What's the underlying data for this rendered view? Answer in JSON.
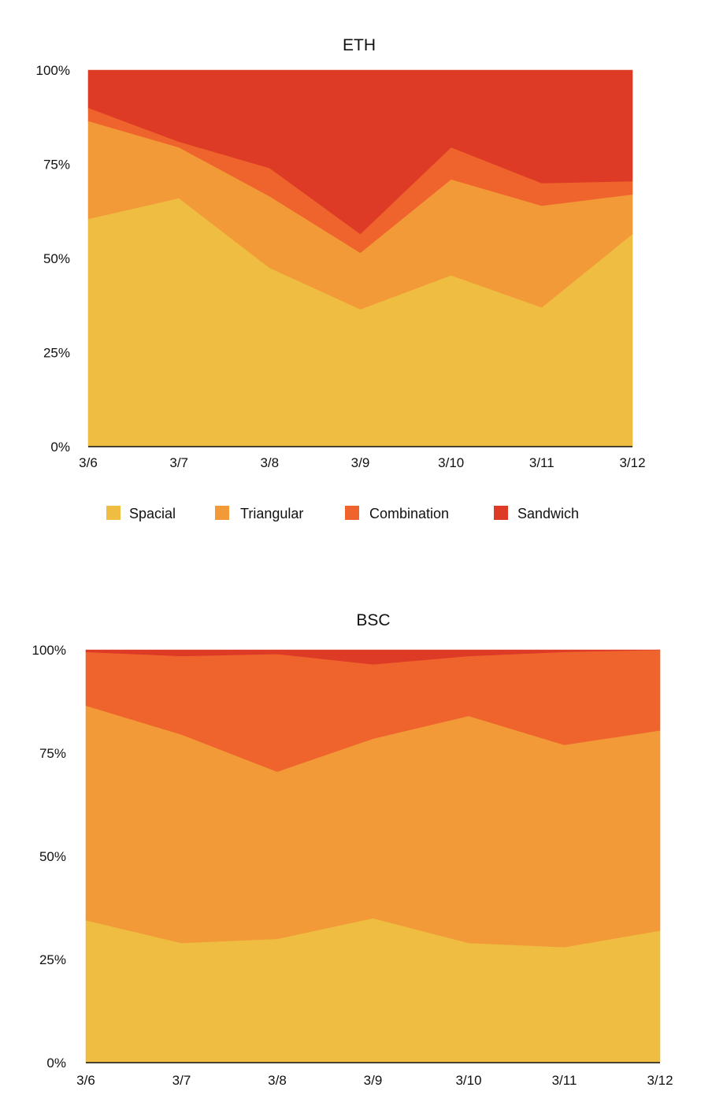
{
  "chart_data": [
    {
      "type": "area",
      "stacked": true,
      "title": "ETH",
      "categories": [
        "3/6",
        "3/7",
        "3/8",
        "3/9",
        "3/10",
        "3/11",
        "3/12"
      ],
      "yticks": [
        "0%",
        "25%",
        "50%",
        "75%",
        "100%"
      ],
      "ylim": [
        0,
        100
      ],
      "legend_position": "bottom",
      "series": [
        {
          "name": "Spacial",
          "color": "#EFBD42",
          "values": [
            60.5,
            66,
            47.5,
            36.5,
            45.5,
            37,
            56.5
          ]
        },
        {
          "name": "Triangular",
          "color": "#F29A38",
          "values": [
            26,
            13.5,
            19,
            15,
            25.5,
            27,
            10.5
          ]
        },
        {
          "name": "Combination",
          "color": "#EF642D",
          "values": [
            3.5,
            1.5,
            7.5,
            5,
            8.5,
            6,
            3.5
          ]
        },
        {
          "name": "Sandwich",
          "color": "#DE3B26",
          "values": [
            10,
            19,
            26,
            43.5,
            20.5,
            30,
            29.5
          ]
        }
      ]
    },
    {
      "type": "area",
      "stacked": true,
      "title": "BSC",
      "categories": [
        "3/6",
        "3/7",
        "3/8",
        "3/9",
        "3/10",
        "3/11",
        "3/12"
      ],
      "yticks": [
        "0%",
        "25%",
        "50%",
        "75%",
        "100%"
      ],
      "ylim": [
        0,
        100
      ],
      "legend_position": "none",
      "series": [
        {
          "name": "Spacial",
          "color": "#EFBD42",
          "values": [
            34.5,
            29,
            30,
            35,
            29,
            28,
            32
          ]
        },
        {
          "name": "Triangular",
          "color": "#F29A38",
          "values": [
            52,
            50.5,
            40.5,
            43.5,
            55,
            49,
            48.5
          ]
        },
        {
          "name": "Combination",
          "color": "#EF642D",
          "values": [
            13,
            19,
            28.5,
            18,
            14.5,
            22.5,
            19.5
          ]
        },
        {
          "name": "Sandwich",
          "color": "#DE3B26",
          "values": [
            0.5,
            1.5,
            1,
            3.5,
            1.5,
            0.5,
            0
          ]
        }
      ]
    }
  ]
}
